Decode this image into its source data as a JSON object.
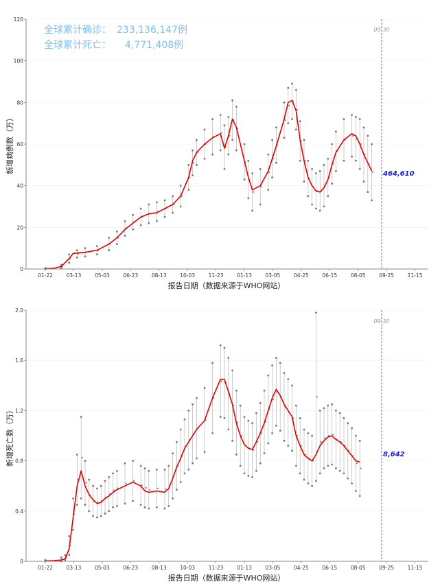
{
  "chart_data": [
    {
      "type": "line",
      "ylabel": "新增病例数（万）",
      "xlabel": "报告日期（数据来源于WHO网站）",
      "ylim": [
        0,
        120
      ],
      "yticks": [
        "0",
        "20",
        "40",
        "60",
        "80",
        "100",
        "120"
      ],
      "xticks": [
        "01-22",
        "03-13",
        "05-03",
        "06-23",
        "08-13",
        "10-03",
        "11-23",
        "01-13",
        "03-05",
        "04-25",
        "06-15",
        "08-05",
        "09-25",
        "11-15"
      ],
      "summary": [
        {
          "label": "全球累计确诊：",
          "value": "233,136,147例"
        },
        {
          "label": "全球累计死亡：",
          "value": "4,771,408例"
        }
      ],
      "marker_date": "09-30",
      "latest_label": "464,610",
      "series": [
        {
          "color": "#e00000",
          "smoothed_points_week_value": [
            [
              0,
              0.1
            ],
            [
              2,
              0.3
            ],
            [
              4,
              1.2
            ],
            [
              6,
              5
            ],
            [
              7,
              7.5
            ],
            [
              10,
              8
            ],
            [
              13,
              9
            ],
            [
              16,
              12
            ],
            [
              18,
              15
            ],
            [
              20,
              19
            ],
            [
              22,
              22
            ],
            [
              24,
              25
            ],
            [
              26,
              26.5
            ],
            [
              28,
              27
            ],
            [
              30,
              29
            ],
            [
              32,
              31
            ],
            [
              34,
              35
            ],
            [
              36,
              44
            ],
            [
              37,
              52
            ],
            [
              38,
              56
            ],
            [
              40,
              60
            ],
            [
              42,
              63
            ],
            [
              44,
              65
            ],
            [
              45,
              58
            ],
            [
              46,
              64
            ],
            [
              47,
              72
            ],
            [
              48,
              68
            ],
            [
              50,
              52
            ],
            [
              51,
              44
            ],
            [
              52,
              38
            ],
            [
              54,
              40
            ],
            [
              56,
              47
            ],
            [
              57,
              53
            ],
            [
              58,
              59
            ],
            [
              60,
              72
            ],
            [
              61,
              80
            ],
            [
              62,
              81
            ],
            [
              63,
              76
            ],
            [
              64,
              62
            ],
            [
              65,
              52
            ],
            [
              66,
              44
            ],
            [
              67,
              40
            ],
            [
              68,
              37.5
            ],
            [
              69,
              37
            ],
            [
              70,
              39
            ],
            [
              71,
              43
            ],
            [
              72,
              50
            ],
            [
              73,
              56
            ],
            [
              75,
              62
            ],
            [
              77,
              65
            ],
            [
              78,
              64
            ],
            [
              79,
              60
            ],
            [
              80,
              55
            ],
            [
              81,
              51
            ],
            [
              82,
              47
            ]
          ]
        }
      ],
      "raw_band_week_low_high": [
        [
          0,
          0,
          0.4
        ],
        [
          4,
          0.5,
          2
        ],
        [
          6,
          3,
          7
        ],
        [
          8,
          5.5,
          9
        ],
        [
          10,
          6,
          10
        ],
        [
          13,
          7,
          11
        ],
        [
          16,
          9,
          15
        ],
        [
          18,
          12,
          18
        ],
        [
          20,
          16,
          23
        ],
        [
          22,
          19,
          26
        ],
        [
          24,
          21,
          29
        ],
        [
          26,
          22,
          31
        ],
        [
          28,
          23,
          32
        ],
        [
          30,
          25,
          33
        ],
        [
          32,
          27,
          35
        ],
        [
          34,
          30,
          40
        ],
        [
          36,
          38,
          50
        ],
        [
          37,
          45,
          57
        ],
        [
          38,
          50,
          62
        ],
        [
          40,
          53,
          67
        ],
        [
          42,
          55,
          72
        ],
        [
          44,
          57,
          74
        ],
        [
          45,
          48,
          69
        ],
        [
          46,
          55,
          73
        ],
        [
          47,
          62,
          81
        ],
        [
          48,
          57,
          78
        ],
        [
          50,
          43,
          60
        ],
        [
          51,
          34,
          52
        ],
        [
          52,
          28,
          46
        ],
        [
          54,
          31,
          48
        ],
        [
          56,
          38,
          55
        ],
        [
          57,
          44,
          62
        ],
        [
          58,
          51,
          68
        ],
        [
          60,
          63,
          80
        ],
        [
          61,
          70,
          87
        ],
        [
          62,
          72,
          89
        ],
        [
          63,
          67,
          86
        ],
        [
          64,
          52,
          71
        ],
        [
          65,
          42,
          62
        ],
        [
          66,
          35,
          52
        ],
        [
          67,
          31,
          48
        ],
        [
          68,
          29,
          46
        ],
        [
          69,
          28,
          47
        ],
        [
          70,
          30,
          50
        ],
        [
          71,
          35,
          53
        ],
        [
          72,
          41,
          60
        ],
        [
          73,
          47,
          66
        ],
        [
          75,
          52,
          72
        ],
        [
          77,
          54,
          74
        ],
        [
          78,
          52,
          73
        ],
        [
          79,
          48,
          72
        ],
        [
          80,
          42,
          68
        ],
        [
          81,
          37,
          64
        ],
        [
          82,
          33,
          60
        ]
      ]
    },
    {
      "type": "line",
      "ylabel": "新增死亡数（万）",
      "xlabel": "报告日期（数据来源于WHO网站）",
      "ylim": [
        0,
        2.0
      ],
      "yticks": [
        "0",
        "0.4",
        "0.8",
        "1.2",
        "1.6",
        "2.0"
      ],
      "xticks": [
        "01-22",
        "03-13",
        "05-03",
        "06-23",
        "08-13",
        "10-03",
        "11-23",
        "01-13",
        "03-05",
        "04-25",
        "06-15",
        "08-05",
        "09-25",
        "11-15"
      ],
      "marker_date": "09-30",
      "latest_label": "8,642",
      "series": [
        {
          "color": "#e00000",
          "smoothed_points_week_value": [
            [
              0,
              0.002
            ],
            [
              2,
              0.005
            ],
            [
              4,
              0.01
            ],
            [
              5,
              0.02
            ],
            [
              6,
              0.1
            ],
            [
              7,
              0.35
            ],
            [
              8,
              0.6
            ],
            [
              9,
              0.72
            ],
            [
              10,
              0.6
            ],
            [
              11,
              0.53
            ],
            [
              12,
              0.49
            ],
            [
              13,
              0.46
            ],
            [
              14,
              0.47
            ],
            [
              15,
              0.5
            ],
            [
              16,
              0.52
            ],
            [
              17,
              0.55
            ],
            [
              18,
              0.57
            ],
            [
              20,
              0.6
            ],
            [
              22,
              0.63
            ],
            [
              24,
              0.6
            ],
            [
              25,
              0.56
            ],
            [
              26,
              0.55
            ],
            [
              28,
              0.56
            ],
            [
              30,
              0.55
            ],
            [
              31,
              0.58
            ],
            [
              32,
              0.66
            ],
            [
              33,
              0.75
            ],
            [
              34,
              0.82
            ],
            [
              35,
              0.9
            ],
            [
              36,
              0.95
            ],
            [
              37,
              1.0
            ],
            [
              38,
              1.05
            ],
            [
              40,
              1.12
            ],
            [
              42,
              1.3
            ],
            [
              44,
              1.45
            ],
            [
              45,
              1.45
            ],
            [
              46,
              1.35
            ],
            [
              47,
              1.25
            ],
            [
              48,
              1.1
            ],
            [
              49,
              1.0
            ],
            [
              50,
              0.93
            ],
            [
              51,
              0.9
            ],
            [
              52,
              0.89
            ],
            [
              53,
              0.95
            ],
            [
              54,
              1.02
            ],
            [
              55,
              1.1
            ],
            [
              56,
              1.2
            ],
            [
              57,
              1.3
            ],
            [
              58,
              1.37
            ],
            [
              59,
              1.32
            ],
            [
              60,
              1.25
            ],
            [
              61,
              1.2
            ],
            [
              62,
              1.15
            ],
            [
              63,
              1.0
            ],
            [
              64,
              0.92
            ],
            [
              65,
              0.85
            ],
            [
              66,
              0.82
            ],
            [
              67,
              0.8
            ],
            [
              68,
              0.85
            ],
            [
              69,
              0.92
            ],
            [
              70,
              0.96
            ],
            [
              71,
              0.99
            ],
            [
              72,
              1.0
            ],
            [
              73,
              0.97
            ],
            [
              74,
              0.95
            ],
            [
              75,
              0.92
            ],
            [
              76,
              0.88
            ],
            [
              77,
              0.84
            ],
            [
              78,
              0.8
            ],
            [
              79,
              0.79
            ]
          ]
        }
      ],
      "raw_band_week_low_high": [
        [
          0,
          0,
          0.01
        ],
        [
          4,
          0,
          0.03
        ],
        [
          5,
          0.01,
          0.05
        ],
        [
          6,
          0.05,
          0.2
        ],
        [
          7,
          0.25,
          0.5
        ],
        [
          8,
          0.45,
          0.85
        ],
        [
          9,
          0.5,
          1.15
        ],
        [
          10,
          0.45,
          0.8
        ],
        [
          11,
          0.4,
          0.65
        ],
        [
          12,
          0.36,
          0.6
        ],
        [
          13,
          0.35,
          0.58
        ],
        [
          14,
          0.36,
          0.6
        ],
        [
          15,
          0.38,
          0.64
        ],
        [
          16,
          0.4,
          0.67
        ],
        [
          17,
          0.43,
          0.7
        ],
        [
          18,
          0.44,
          0.72
        ],
        [
          20,
          0.46,
          0.78
        ],
        [
          22,
          0.48,
          0.8
        ],
        [
          24,
          0.45,
          0.76
        ],
        [
          25,
          0.43,
          0.74
        ],
        [
          26,
          0.42,
          0.72
        ],
        [
          28,
          0.43,
          0.73
        ],
        [
          30,
          0.42,
          0.73
        ],
        [
          31,
          0.44,
          0.76
        ],
        [
          32,
          0.5,
          0.86
        ],
        [
          33,
          0.57,
          0.95
        ],
        [
          34,
          0.63,
          1.05
        ],
        [
          35,
          0.7,
          1.13
        ],
        [
          36,
          0.73,
          1.2
        ],
        [
          37,
          0.78,
          1.25
        ],
        [
          38,
          0.82,
          1.3
        ],
        [
          40,
          0.87,
          1.38
        ],
        [
          42,
          1.02,
          1.58
        ],
        [
          44,
          1.15,
          1.72
        ],
        [
          45,
          1.14,
          1.7
        ],
        [
          46,
          1.05,
          1.62
        ],
        [
          47,
          0.96,
          1.52
        ],
        [
          48,
          0.85,
          1.36
        ],
        [
          49,
          0.76,
          1.24
        ],
        [
          50,
          0.7,
          1.15
        ],
        [
          51,
          0.68,
          1.12
        ],
        [
          52,
          0.67,
          1.1
        ],
        [
          53,
          0.72,
          1.18
        ],
        [
          54,
          0.78,
          1.26
        ],
        [
          55,
          0.86,
          1.36
        ],
        [
          56,
          0.94,
          1.48
        ],
        [
          57,
          1.02,
          1.56
        ],
        [
          58,
          1.08,
          1.62
        ],
        [
          59,
          1.04,
          1.58
        ],
        [
          60,
          0.96,
          1.5
        ],
        [
          61,
          0.92,
          1.45
        ],
        [
          62,
          0.88,
          1.4
        ],
        [
          63,
          0.76,
          1.24
        ],
        [
          64,
          0.7,
          1.14
        ],
        [
          65,
          0.65,
          1.05
        ],
        [
          66,
          0.62,
          1.02
        ],
        [
          67,
          0.6,
          1.0
        ],
        [
          68,
          0.64,
          1.98
        ],
        [
          69,
          0.7,
          1.2
        ],
        [
          70,
          0.74,
          1.22
        ],
        [
          71,
          0.76,
          1.24
        ],
        [
          72,
          0.77,
          1.25
        ],
        [
          73,
          0.74,
          1.2
        ],
        [
          74,
          0.72,
          1.18
        ],
        [
          75,
          0.7,
          1.14
        ],
        [
          76,
          0.66,
          1.1
        ],
        [
          77,
          0.62,
          1.06
        ],
        [
          78,
          0.56,
          1.0
        ],
        [
          79,
          0.52,
          0.96
        ]
      ]
    }
  ]
}
